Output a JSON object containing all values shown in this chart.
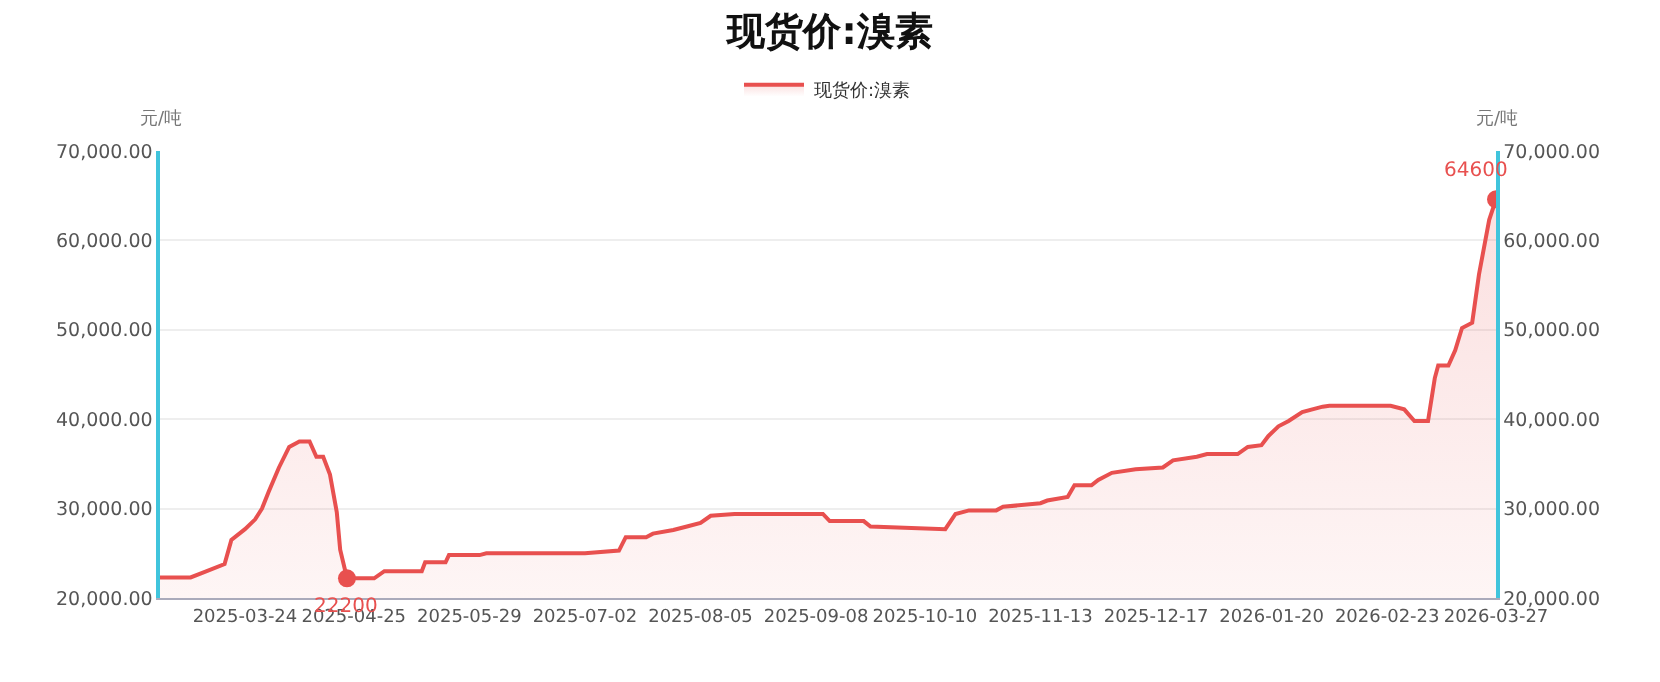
{
  "chart_data": {
    "type": "area",
    "title": "现货价:溴素",
    "ylabel": "元/吨",
    "y2label": "元/吨",
    "x": [
      "2025-02-27",
      "2025-03-08",
      "2025-03-12",
      "2025-03-18",
      "2025-03-20",
      "2025-03-24",
      "2025-03-27",
      "2025-03-29",
      "2025-03-31",
      "2025-04-03",
      "2025-04-06",
      "2025-04-09",
      "2025-04-12",
      "2025-04-14",
      "2025-04-16",
      "2025-04-18",
      "2025-04-20",
      "2025-04-21",
      "2025-04-23",
      "2025-05-01",
      "2025-05-04",
      "2025-05-15",
      "2025-05-16",
      "2025-05-22",
      "2025-05-23",
      "2025-06-01",
      "2025-06-03",
      "2025-07-02",
      "2025-07-12",
      "2025-07-14",
      "2025-07-20",
      "2025-07-22",
      "2025-07-28",
      "2025-08-01",
      "2025-08-05",
      "2025-08-08",
      "2025-08-15",
      "2025-09-10",
      "2025-09-12",
      "2025-09-22",
      "2025-09-24",
      "2025-10-16",
      "2025-10-19",
      "2025-10-23",
      "2025-10-31",
      "2025-11-02",
      "2025-11-13",
      "2025-11-15",
      "2025-11-21",
      "2025-11-23",
      "2025-11-28",
      "2025-11-30",
      "2025-12-04",
      "2025-12-11",
      "2025-12-19",
      "2025-12-22",
      "2025-12-29",
      "2026-01-01",
      "2026-01-10",
      "2026-01-13",
      "2026-01-17",
      "2026-01-19",
      "2026-01-22",
      "2026-01-25",
      "2026-01-29",
      "2026-02-04",
      "2026-02-06",
      "2026-02-24",
      "2026-02-28",
      "2026-03-03",
      "2026-03-07",
      "2026-03-09",
      "2026-03-10",
      "2026-03-13",
      "2026-03-15",
      "2026-03-17",
      "2026-03-20",
      "2026-03-22",
      "2026-03-25",
      "2026-03-27"
    ],
    "series": [
      {
        "name": "现货价:溴素",
        "color": "#e8504f",
        "values": [
          22300,
          22300,
          22900,
          23800,
          26500,
          27700,
          28800,
          30000,
          31900,
          34600,
          36900,
          37500,
          37500,
          35800,
          35800,
          33800,
          29600,
          25400,
          22200,
          22200,
          23000,
          23000,
          24000,
          24000,
          24800,
          24800,
          25000,
          25000,
          25300,
          26800,
          26800,
          27200,
          27600,
          28000,
          28400,
          29200,
          29400,
          29400,
          28600,
          28600,
          28000,
          27700,
          29400,
          29800,
          29800,
          30200,
          30600,
          30900,
          31300,
          32600,
          32600,
          33200,
          34000,
          34400,
          34600,
          35400,
          35800,
          36100,
          36100,
          36900,
          37100,
          38100,
          39200,
          39800,
          40800,
          41400,
          41500,
          41500,
          41100,
          39800,
          39800,
          44600,
          46000,
          46000,
          47700,
          50200,
          50800,
          56200,
          62300,
          64600
        ]
      }
    ],
    "annotations": [
      {
        "text": "22200",
        "x": "2025-04-23",
        "y": 22200
      },
      {
        "text": "64600",
        "x": "2026-03-27",
        "y": 64600
      }
    ],
    "xlim": [
      "2025-02-27",
      "2026-03-27"
    ],
    "xticks": [
      "2025-03-24",
      "2025-04-25",
      "2025-05-29",
      "2025-07-02",
      "2025-08-05",
      "2025-09-08",
      "2025-10-10",
      "2025-11-13",
      "2025-12-17",
      "2026-01-20",
      "2026-02-23",
      "2026-03-27"
    ],
    "ylim": [
      20000,
      70000
    ],
    "yticks": [
      {
        "value": 20000,
        "label": "20,000.00"
      },
      {
        "value": 30000,
        "label": "30,000.00"
      },
      {
        "value": 40000,
        "label": "40,000.00"
      },
      {
        "value": 50000,
        "label": "50,000.00"
      },
      {
        "value": 60000,
        "label": "60,000.00"
      },
      {
        "value": 70000,
        "label": "70,000.00"
      }
    ],
    "y2lim": [
      20000,
      70000
    ],
    "y2ticks": [
      {
        "value": 20000,
        "label": "20,000.00"
      },
      {
        "value": 30000,
        "label": "30,000.00"
      },
      {
        "value": 40000,
        "label": "40,000.00"
      },
      {
        "value": 50000,
        "label": "50,000.00"
      },
      {
        "value": 60000,
        "label": "60,000.00"
      },
      {
        "value": 70000,
        "label": "70,000.00"
      }
    ],
    "grid": "y",
    "legend": "top",
    "marker": "none",
    "line_style": "solid"
  }
}
